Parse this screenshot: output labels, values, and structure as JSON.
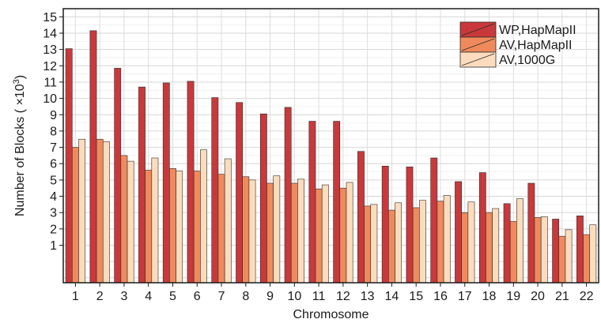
{
  "chart_data": {
    "type": "bar",
    "xlabel": "Chromosome",
    "ylabel": "Number of Blocks ( ×10³)",
    "ylabel_parts": {
      "main": "Number of Blocks ( ×10",
      "exponent": "3",
      "close": ")"
    },
    "ylim": [
      -1.3,
      15.5
    ],
    "yticks": [
      1,
      2,
      3,
      4,
      5,
      6,
      7,
      8,
      9,
      10,
      11,
      12,
      13,
      14,
      15
    ],
    "grid": true,
    "legend_position": "top-right",
    "categories": [
      "1",
      "2",
      "3",
      "4",
      "5",
      "6",
      "7",
      "8",
      "9",
      "10",
      "11",
      "12",
      "13",
      "14",
      "15",
      "16",
      "17",
      "18",
      "19",
      "20",
      "21",
      "22"
    ],
    "series": [
      {
        "name": "WP,HapMapII",
        "color": "#c9393b",
        "values": [
          13.05,
          14.15,
          11.85,
          10.7,
          10.95,
          11.05,
          10.05,
          9.75,
          9.05,
          9.45,
          8.6,
          8.6,
          6.75,
          5.85,
          5.8,
          6.35,
          4.9,
          5.45,
          3.55,
          4.8,
          2.6,
          2.8
        ]
      },
      {
        "name": "AV,HapMapII",
        "color": "#f08a5d",
        "values": [
          7.0,
          7.5,
          6.5,
          5.6,
          5.7,
          5.55,
          5.35,
          5.2,
          4.8,
          4.8,
          4.45,
          4.5,
          3.4,
          3.15,
          3.3,
          3.7,
          3.0,
          3.0,
          2.45,
          2.7,
          1.55,
          1.65
        ]
      },
      {
        "name": "AV,1000G",
        "color": "#fcdcbc",
        "values": [
          7.5,
          7.35,
          6.15,
          6.35,
          5.55,
          6.85,
          6.3,
          5.0,
          5.25,
          5.05,
          4.7,
          4.85,
          3.5,
          3.6,
          3.75,
          4.05,
          3.65,
          3.25,
          3.85,
          2.75,
          1.95,
          2.25
        ]
      }
    ]
  }
}
